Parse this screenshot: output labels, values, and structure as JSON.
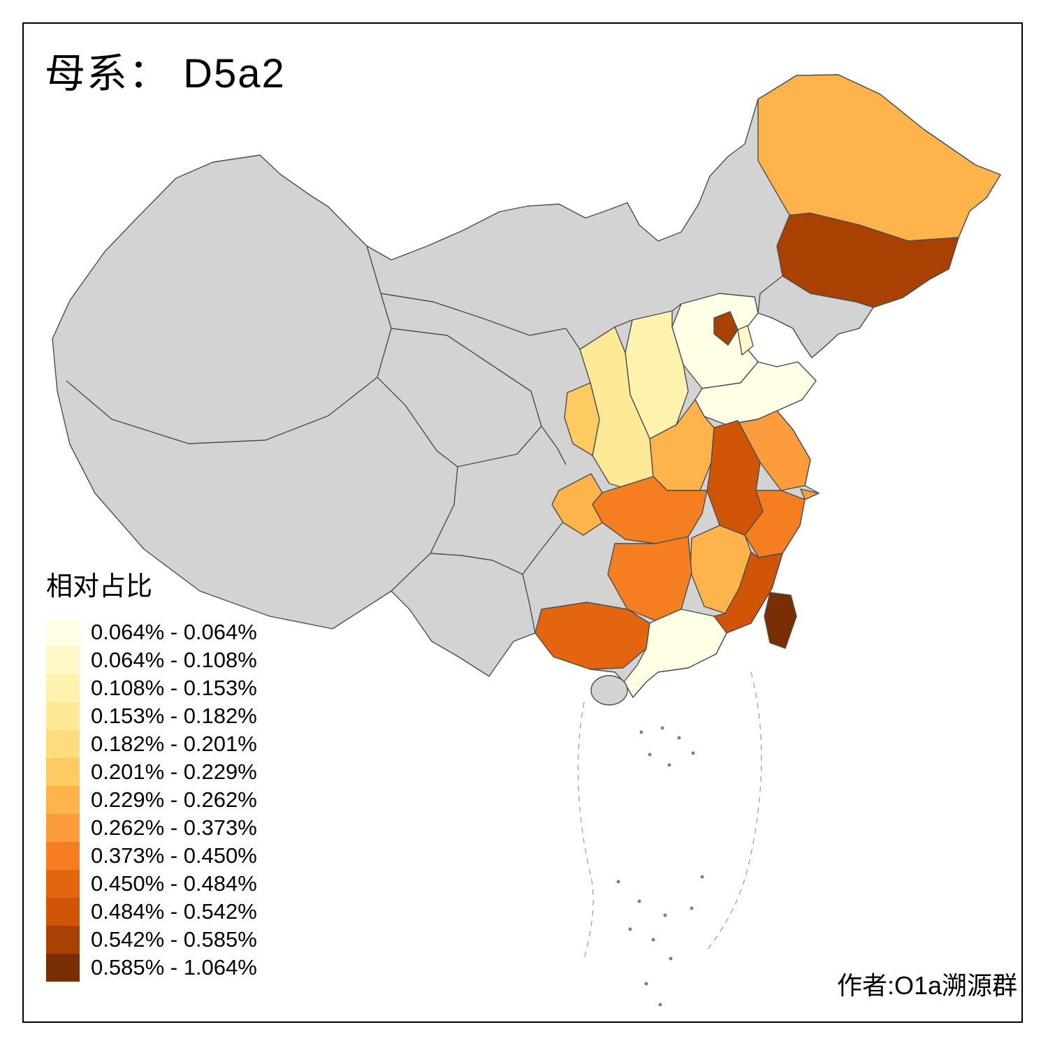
{
  "title": "母系： D5a2",
  "attribution": "作者:O1a溯源群",
  "legend": {
    "title": "相对占比",
    "items": [
      {
        "label": "0.064% - 0.064%",
        "color": "#FFFFE5"
      },
      {
        "label": "0.064% - 0.108%",
        "color": "#FFF9C8"
      },
      {
        "label": "0.108% - 0.153%",
        "color": "#FEF2AF"
      },
      {
        "label": "0.153% - 0.182%",
        "color": "#FEE997"
      },
      {
        "label": "0.182% - 0.201%",
        "color": "#FEDC7E"
      },
      {
        "label": "0.201% - 0.229%",
        "color": "#FECB62"
      },
      {
        "label": "0.229% - 0.262%",
        "color": "#FEB44B"
      },
      {
        "label": "0.262% - 0.373%",
        "color": "#FD9C3C"
      },
      {
        "label": "0.373% - 0.450%",
        "color": "#F57F20"
      },
      {
        "label": "0.450% - 0.484%",
        "color": "#E4650F"
      },
      {
        "label": "0.484% - 0.542%",
        "color": "#D05507"
      },
      {
        "label": "0.542% - 0.585%",
        "color": "#A94103"
      },
      {
        "label": "0.585% - 1.064%",
        "color": "#7A2E04"
      }
    ]
  },
  "map": {
    "no_data_color": "#D3D3D3",
    "border_color": "#4D4D4D",
    "provinces": [
      {
        "id": "heilongjiang",
        "bin": 7
      },
      {
        "id": "jilin",
        "bin": 12
      },
      {
        "id": "beijing",
        "bin": 12
      },
      {
        "id": "tianjin",
        "bin": 2
      },
      {
        "id": "hebei",
        "bin": 1
      },
      {
        "id": "shanxi",
        "bin": 3
      },
      {
        "id": "shandong",
        "bin": 1
      },
      {
        "id": "shaanxi",
        "bin": 4
      },
      {
        "id": "ningxia",
        "bin": 6
      },
      {
        "id": "henan",
        "bin": 7
      },
      {
        "id": "jiangsu",
        "bin": 8
      },
      {
        "id": "anhui",
        "bin": 11
      },
      {
        "id": "shanghai",
        "bin": 8
      },
      {
        "id": "zhejiang",
        "bin": 9
      },
      {
        "id": "hubei",
        "bin": 9
      },
      {
        "id": "chongqing",
        "bin": 7
      },
      {
        "id": "jiangxi",
        "bin": 7
      },
      {
        "id": "hunan",
        "bin": 9
      },
      {
        "id": "fujian",
        "bin": 11
      },
      {
        "id": "guangxi",
        "bin": 10
      },
      {
        "id": "guangdong",
        "bin": 1
      },
      {
        "id": "taiwan",
        "bin": 13
      },
      {
        "id": "liaoning",
        "bin": null
      },
      {
        "id": "hainan",
        "bin": null
      }
    ]
  }
}
